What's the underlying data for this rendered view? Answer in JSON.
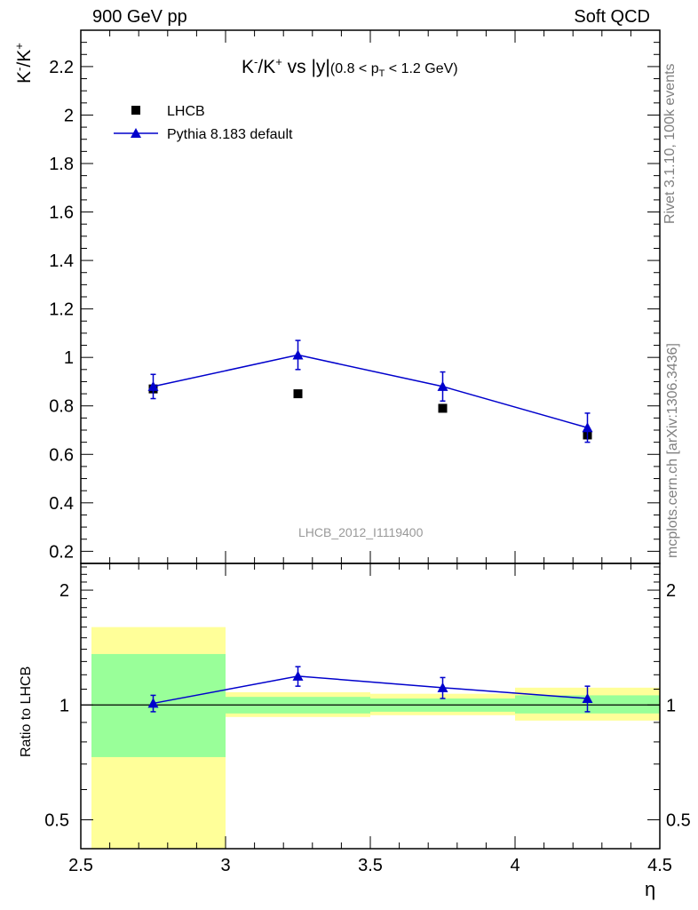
{
  "header": {
    "left": "900 GeV pp",
    "right": "Soft QCD"
  },
  "side_labels": {
    "rivet": "Rivet 3.1.10,  100k events",
    "mcplots": "mcplots.cern.ch [arXiv:1306.3436]"
  },
  "watermark": "LHCB_2012_I1119400",
  "colors": {
    "data": "#000000",
    "mc": "#0000cc",
    "band_outer": "#ffff99",
    "band_inner": "#99ff99"
  },
  "chart_data": [
    {
      "type": "line",
      "title": "K⁻/K⁺ vs |y|",
      "title_parts": {
        "main": "K",
        "sup1": "-",
        "slash": "/K",
        "sup2": "+",
        "vs": " vs |y|",
        "range": "(0.8 < p",
        "sub": "T",
        "range_end": " < 1.2 GeV)"
      },
      "ylabel_parts": {
        "k1": "K",
        "sup1": "-",
        "k2": "/K",
        "sup2": "+"
      },
      "xlabel": "η",
      "xlim": [
        2.5,
        4.5
      ],
      "ylim": [
        0.15,
        2.35
      ],
      "x_ticks": [
        "2.5",
        "3",
        "3.5",
        "4",
        "4.5"
      ],
      "y_ticks": [
        "0.2",
        "0.4",
        "0.6",
        "0.8",
        "1",
        "1.2",
        "1.4",
        "1.6",
        "1.8",
        "2",
        "2.2"
      ],
      "series": [
        {
          "name": "LHCB",
          "marker": "square",
          "x": [
            2.75,
            3.25,
            3.75,
            4.25
          ],
          "y": [
            0.87,
            0.85,
            0.79,
            0.68
          ],
          "yerr": [
            0.02,
            0.01,
            0.01,
            0.02
          ]
        },
        {
          "name": "Pythia 8.183 default",
          "marker": "triangle",
          "x": [
            2.75,
            3.25,
            3.75,
            4.25
          ],
          "y": [
            0.88,
            1.01,
            0.88,
            0.71
          ],
          "yerr": [
            0.05,
            0.06,
            0.06,
            0.06
          ]
        }
      ],
      "legend": [
        "LHCB",
        "Pythia 8.183 default"
      ]
    },
    {
      "type": "line",
      "ylabel": "Ratio to LHCB",
      "xlabel": "η",
      "xlim": [
        2.5,
        4.5
      ],
      "ylim": [
        0.42,
        2.35
      ],
      "y_scale": "log",
      "y_ticks": [
        "0.5",
        "1",
        "2"
      ],
      "bins": [
        [
          2.5,
          3.0
        ],
        [
          3.0,
          3.5
        ],
        [
          3.5,
          4.0
        ],
        [
          4.0,
          4.5
        ]
      ],
      "band_outer": [
        [
          0.38,
          1.6
        ],
        [
          0.93,
          1.08
        ],
        [
          0.94,
          1.07
        ],
        [
          0.91,
          1.11
        ]
      ],
      "band_inner": [
        [
          0.73,
          1.36
        ],
        [
          0.95,
          1.05
        ],
        [
          0.96,
          1.04
        ],
        [
          0.95,
          1.06
        ]
      ],
      "series": [
        {
          "name": "Pythia 8.183 default",
          "x": [
            2.75,
            3.25,
            3.75,
            4.25
          ],
          "y": [
            1.01,
            1.19,
            1.11,
            1.04
          ],
          "yerr": [
            0.05,
            0.07,
            0.07,
            0.08
          ]
        }
      ]
    }
  ]
}
